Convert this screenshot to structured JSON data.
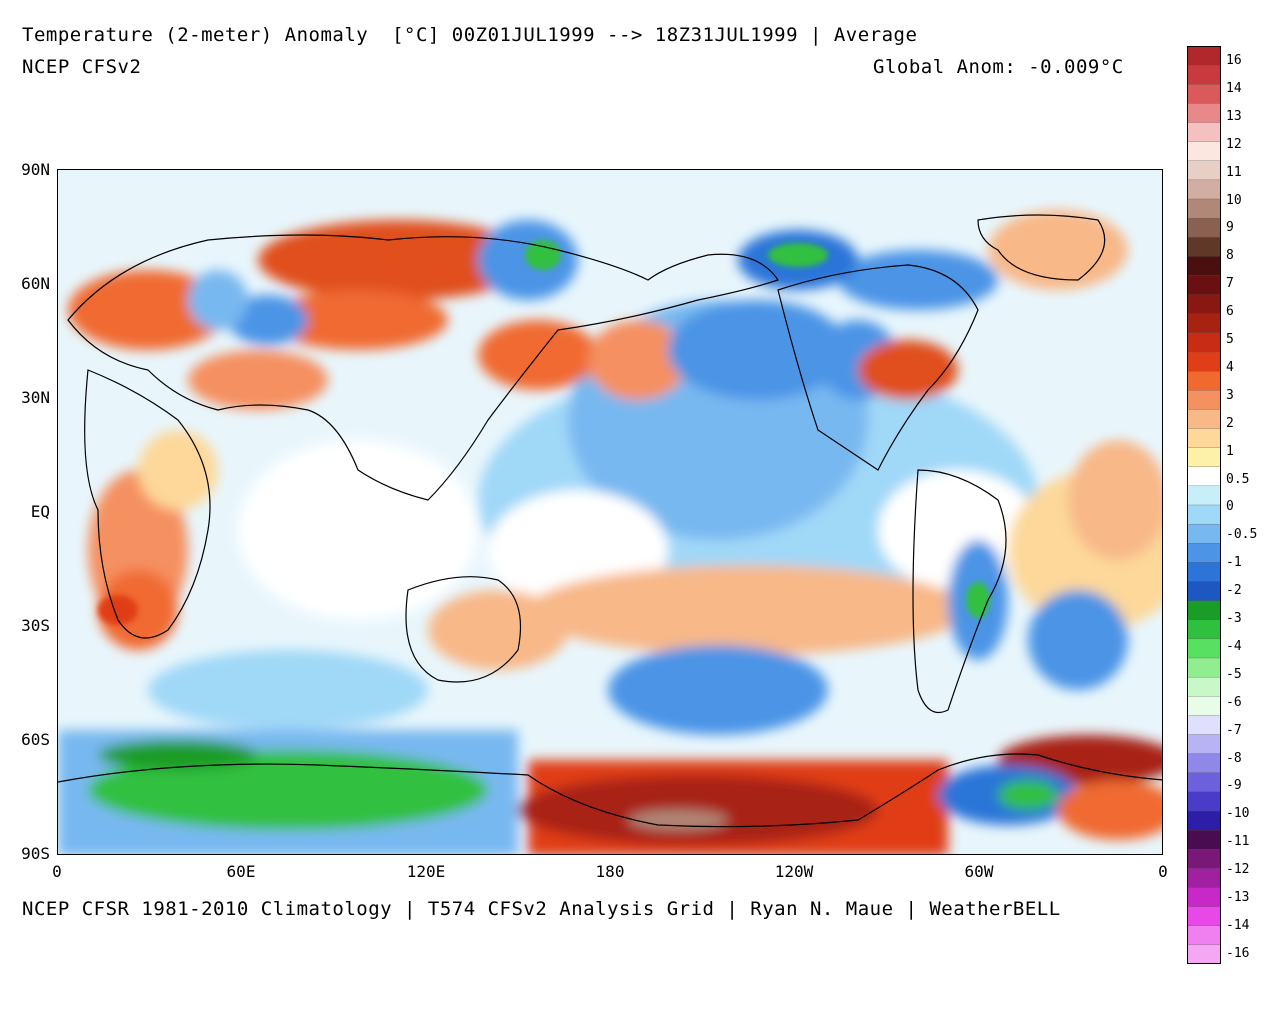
{
  "header": {
    "title": "Temperature (2-meter) Anomaly  [°C] 00Z01JUL1999 --> 18Z31JUL1999 | Average",
    "model": "NCEP CFSv2",
    "global_anom": "Global Anom: -0.009°C"
  },
  "footer": {
    "credit": "NCEP CFSR 1981-2010 Climatology | T574 CFSv2 Analysis Grid | Ryan N. Maue | WeatherBELL"
  },
  "axes": {
    "lat_labels": [
      "90N",
      "60N",
      "30N",
      "EQ",
      "30S",
      "60S",
      "90S"
    ],
    "lon_labels": [
      "0",
      "60E",
      "120E",
      "180",
      "120W",
      "60W",
      "0"
    ]
  },
  "colorbar": {
    "labels": [
      "16",
      "14",
      "13",
      "12",
      "11",
      "10",
      "9",
      "8",
      "7",
      "6",
      "5",
      "4",
      "3",
      "2",
      "1",
      "0.5",
      "0",
      "-0.5",
      "-1",
      "-2",
      "-3",
      "-4",
      "-5",
      "-6",
      "-7",
      "-8",
      "-9",
      "-10",
      "-11",
      "-12",
      "-13",
      "-14",
      "-16"
    ],
    "colors": [
      "#b0282c",
      "#c83a3e",
      "#da5a5c",
      "#e8888a",
      "#f5c0c0",
      "#fbe6e0",
      "#e8cfc6",
      "#d2aea2",
      "#b08878",
      "#8a6050",
      "#603828",
      "#4a0f0f",
      "#6a1010",
      "#8a1812",
      "#a82214",
      "#c82c14",
      "#e03e18",
      "#f06a30",
      "#f59060",
      "#f8b888",
      "#fdd89a",
      "#fdf0a8",
      "#ffffff",
      "#c8eefa",
      "#a0d8f8",
      "#78b8f0",
      "#4c94e6",
      "#2c74d8",
      "#1c58c0",
      "#1a9c28",
      "#30c040",
      "#58e060",
      "#90ee90",
      "#c8f8c8",
      "#e8fce8",
      "#e0e0fc",
      "#b8b4f4",
      "#9088e8",
      "#6c60dc",
      "#4a3cc8",
      "#2c1ea8",
      "#4a0c50",
      "#7a1878",
      "#a020a0",
      "#c828c8",
      "#e848e8",
      "#f080f0",
      "#f4a8f4"
    ]
  },
  "map": {
    "land_color": "#000000",
    "warm_color": "#e0501c",
    "cool_color": "#2c74d8",
    "green_color": "#30c040"
  }
}
